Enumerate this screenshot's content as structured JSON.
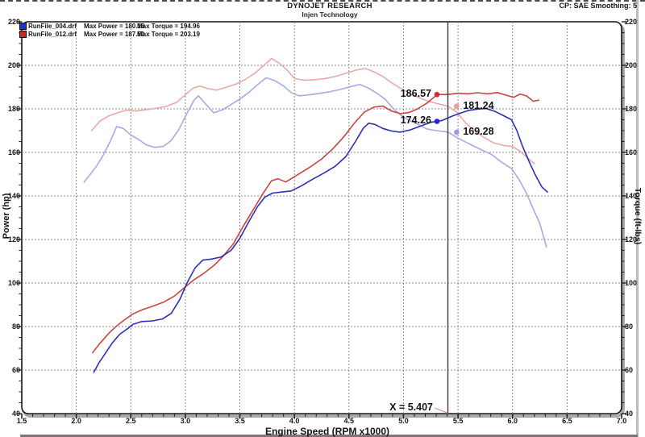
{
  "header": {
    "title": "DYNOJET RESEARCH",
    "subtitle": "Injen Technology",
    "settings": "CP: SAE  Smoothing: 5"
  },
  "legend": [
    {
      "file": "RunFile_004.drf",
      "max_power": "Max Power = 180.16",
      "max_torque": "Max Torque = 194.96",
      "color": "#2233cc"
    },
    {
      "file": "RunFile_012.drf",
      "max_power": "Max Power = 187.51",
      "max_torque": "Max Torque = 203.19",
      "color": "#d42222"
    }
  ],
  "cursor": {
    "x": 5.407,
    "label": "X = 5.407"
  },
  "colors": {
    "blue_power": "#2e2eb8",
    "red_power": "#c94444",
    "blue_torque": "#a9a9e3",
    "red_torque": "#eaa9a9",
    "grid": "#8a8a8a",
    "cursor_line": "#3c3c3c",
    "pointer": "#d98f8f",
    "border": "#141414",
    "shadow": "#a9a9a9"
  },
  "chart_data": {
    "type": "line",
    "xlabel": "Engine Speed (RPM x1000)",
    "ylabel_left": "Power (hp)",
    "ylabel_right": "Torque (ft-lbs)",
    "xlim": [
      1.5,
      7.0
    ],
    "ylim": [
      40,
      220
    ],
    "x_ticks": [
      1.5,
      2.0,
      2.5,
      3.0,
      3.5,
      4.0,
      4.5,
      5.0,
      5.5,
      6.0,
      6.5,
      7.0
    ],
    "y_ticks": [
      220,
      200,
      180,
      160,
      140,
      120,
      100,
      80,
      60,
      40
    ],
    "grid": {
      "v": [
        2.0,
        2.5,
        3.0,
        3.5,
        4.0,
        4.5,
        5.0,
        5.5,
        6.0,
        6.5
      ],
      "h": [
        60,
        80,
        100,
        120,
        140,
        160,
        180,
        200
      ]
    },
    "legend_position": "top-left",
    "annotations": [
      {
        "text": "186.57",
        "rpm": 5.307,
        "side": "left",
        "color": "#e02525"
      },
      {
        "text": "181.24",
        "rpm": 5.487,
        "side": "right",
        "color": "#f09c9c"
      },
      {
        "text": "174.26",
        "rpm": 5.307,
        "side": "left",
        "color": "#2525d8"
      },
      {
        "text": "169.28",
        "rpm": 5.487,
        "side": "right",
        "color": "#9a9ae8"
      }
    ],
    "series": [
      {
        "name": "RunFile_012 Torque (ft-lbs)",
        "color": "#eaa9a9",
        "points": [
          [
            2.14,
            170
          ],
          [
            2.22,
            174.5
          ],
          [
            2.3,
            176.8
          ],
          [
            2.38,
            178.2
          ],
          [
            2.46,
            179.4
          ],
          [
            2.55,
            179
          ],
          [
            2.64,
            179.6
          ],
          [
            2.74,
            180.3
          ],
          [
            2.83,
            181.2
          ],
          [
            2.92,
            183
          ],
          [
            3.0,
            186.5
          ],
          [
            3.07,
            189.5
          ],
          [
            3.13,
            190.5
          ],
          [
            3.2,
            189.4
          ],
          [
            3.28,
            188.6
          ],
          [
            3.37,
            189.8
          ],
          [
            3.46,
            191.3
          ],
          [
            3.55,
            193.5
          ],
          [
            3.64,
            196.5
          ],
          [
            3.72,
            200
          ],
          [
            3.79,
            203.1
          ],
          [
            3.86,
            201
          ],
          [
            3.93,
            198
          ],
          [
            4.0,
            194
          ],
          [
            4.08,
            193.2
          ],
          [
            4.17,
            193.3
          ],
          [
            4.27,
            193.8
          ],
          [
            4.37,
            194.8
          ],
          [
            4.47,
            196.3
          ],
          [
            4.57,
            197.9
          ],
          [
            4.65,
            198.5
          ],
          [
            4.73,
            197
          ],
          [
            4.81,
            194.9
          ],
          [
            4.89,
            192
          ],
          [
            4.97,
            189.5
          ],
          [
            5.06,
            187
          ],
          [
            5.15,
            185
          ],
          [
            5.24,
            183.3
          ],
          [
            5.33,
            182.2
          ],
          [
            5.41,
            181.2
          ],
          [
            5.49,
            178.5
          ],
          [
            5.57,
            173.5
          ],
          [
            5.65,
            170
          ],
          [
            5.74,
            166.8
          ],
          [
            5.83,
            164.3
          ],
          [
            5.92,
            163.2
          ],
          [
            6.0,
            162.7
          ],
          [
            6.07,
            160.5
          ],
          [
            6.13,
            157.8
          ],
          [
            6.2,
            154.8
          ]
        ]
      },
      {
        "name": "RunFile_004 Torque (ft-lbs)",
        "color": "#a9a9e3",
        "points": [
          [
            2.07,
            146.3
          ],
          [
            2.13,
            150
          ],
          [
            2.19,
            154
          ],
          [
            2.25,
            159
          ],
          [
            2.31,
            165
          ],
          [
            2.37,
            171.9
          ],
          [
            2.43,
            171
          ],
          [
            2.5,
            168
          ],
          [
            2.57,
            166
          ],
          [
            2.64,
            163.5
          ],
          [
            2.72,
            162.3
          ],
          [
            2.8,
            162.8
          ],
          [
            2.87,
            165.5
          ],
          [
            2.94,
            170.5
          ],
          [
            3.01,
            177.5
          ],
          [
            3.08,
            184
          ],
          [
            3.12,
            186
          ],
          [
            3.19,
            182
          ],
          [
            3.26,
            178.2
          ],
          [
            3.34,
            179.5
          ],
          [
            3.42,
            182
          ],
          [
            3.5,
            184.5
          ],
          [
            3.58,
            187.5
          ],
          [
            3.66,
            191
          ],
          [
            3.74,
            194.3
          ],
          [
            3.82,
            193
          ],
          [
            3.9,
            190.5
          ],
          [
            3.97,
            187.5
          ],
          [
            4.04,
            186
          ],
          [
            4.13,
            186.4
          ],
          [
            4.22,
            187
          ],
          [
            4.32,
            187.8
          ],
          [
            4.42,
            188.9
          ],
          [
            4.52,
            190.3
          ],
          [
            4.6,
            191.2
          ],
          [
            4.68,
            189.5
          ],
          [
            4.76,
            187
          ],
          [
            4.83,
            184.5
          ],
          [
            4.9,
            180.5
          ],
          [
            4.97,
            177.3
          ],
          [
            5.04,
            175
          ],
          [
            5.12,
            173.2
          ],
          [
            5.21,
            170.8
          ],
          [
            5.3,
            170
          ],
          [
            5.41,
            169.3
          ],
          [
            5.5,
            166.5
          ],
          [
            5.6,
            164
          ],
          [
            5.7,
            161.5
          ],
          [
            5.81,
            159
          ],
          [
            5.9,
            155.5
          ],
          [
            5.99,
            152.6
          ],
          [
            6.06,
            147.5
          ],
          [
            6.13,
            141
          ],
          [
            6.19,
            134
          ],
          [
            6.25,
            127.4
          ],
          [
            6.31,
            116.5
          ]
        ]
      },
      {
        "name": "RunFile_012 Power (hp)",
        "color": "#c94444",
        "points": [
          [
            2.15,
            68
          ],
          [
            2.22,
            72.5
          ],
          [
            2.3,
            77
          ],
          [
            2.37,
            80.3
          ],
          [
            2.44,
            83
          ],
          [
            2.52,
            85.8
          ],
          [
            2.61,
            87.8
          ],
          [
            2.7,
            89.3
          ],
          [
            2.8,
            91.2
          ],
          [
            2.9,
            94
          ],
          [
            2.99,
            97.8
          ],
          [
            3.08,
            101.5
          ],
          [
            3.17,
            104.5
          ],
          [
            3.26,
            108
          ],
          [
            3.35,
            112.5
          ],
          [
            3.44,
            118
          ],
          [
            3.53,
            126
          ],
          [
            3.62,
            133.5
          ],
          [
            3.71,
            141
          ],
          [
            3.79,
            147
          ],
          [
            3.85,
            147.9
          ],
          [
            3.92,
            146.4
          ],
          [
            3.99,
            148.5
          ],
          [
            4.07,
            151
          ],
          [
            4.15,
            153.5
          ],
          [
            4.25,
            157
          ],
          [
            4.35,
            161.5
          ],
          [
            4.45,
            167
          ],
          [
            4.55,
            173.5
          ],
          [
            4.64,
            178.5
          ],
          [
            4.73,
            180.8
          ],
          [
            4.81,
            181.3
          ],
          [
            4.89,
            179
          ],
          [
            4.97,
            177.8
          ],
          [
            5.05,
            178.3
          ],
          [
            5.13,
            180
          ],
          [
            5.22,
            182.8
          ],
          [
            5.31,
            186.6
          ],
          [
            5.41,
            186.6
          ],
          [
            5.5,
            187.2
          ],
          [
            5.59,
            186.9
          ],
          [
            5.68,
            187.4
          ],
          [
            5.77,
            186.9
          ],
          [
            5.86,
            187.5
          ],
          [
            5.94,
            186.3
          ],
          [
            6.01,
            185.3
          ],
          [
            6.07,
            186.8
          ],
          [
            6.13,
            185.9
          ],
          [
            6.19,
            183.5
          ],
          [
            6.24,
            184
          ]
        ]
      },
      {
        "name": "RunFile_004 Power (hp)",
        "color": "#2e2eb8",
        "points": [
          [
            2.16,
            59
          ],
          [
            2.21,
            63.5
          ],
          [
            2.27,
            68
          ],
          [
            2.33,
            72.5
          ],
          [
            2.4,
            76.5
          ],
          [
            2.47,
            79
          ],
          [
            2.52,
            81
          ],
          [
            2.6,
            82.3
          ],
          [
            2.7,
            82.6
          ],
          [
            2.79,
            83.5
          ],
          [
            2.87,
            86
          ],
          [
            2.95,
            92.5
          ],
          [
            3.02,
            100.5
          ],
          [
            3.09,
            107
          ],
          [
            3.16,
            110.5
          ],
          [
            3.24,
            111
          ],
          [
            3.33,
            112
          ],
          [
            3.42,
            115
          ],
          [
            3.5,
            120.5
          ],
          [
            3.58,
            128
          ],
          [
            3.66,
            135
          ],
          [
            3.73,
            139.5
          ],
          [
            3.8,
            141.3
          ],
          [
            3.89,
            141.8
          ],
          [
            3.97,
            142.3
          ],
          [
            4.06,
            144.5
          ],
          [
            4.16,
            147.5
          ],
          [
            4.27,
            150.5
          ],
          [
            4.37,
            153.5
          ],
          [
            4.47,
            158
          ],
          [
            4.56,
            165
          ],
          [
            4.63,
            171
          ],
          [
            4.68,
            173.4
          ],
          [
            4.74,
            172.8
          ],
          [
            4.81,
            171
          ],
          [
            4.89,
            169.8
          ],
          [
            4.97,
            169.3
          ],
          [
            5.06,
            170.3
          ],
          [
            5.16,
            172.2
          ],
          [
            5.25,
            173.8
          ],
          [
            5.35,
            174.6
          ],
          [
            5.44,
            176.5
          ],
          [
            5.52,
            178
          ],
          [
            5.6,
            179.3
          ],
          [
            5.68,
            179.9
          ],
          [
            5.76,
            180.1
          ],
          [
            5.84,
            178.8
          ],
          [
            5.92,
            176.8
          ],
          [
            5.99,
            175
          ],
          [
            6.04,
            170
          ],
          [
            6.09,
            163
          ],
          [
            6.15,
            156
          ],
          [
            6.21,
            149.5
          ],
          [
            6.27,
            144
          ],
          [
            6.32,
            141.8
          ]
        ]
      }
    ]
  }
}
